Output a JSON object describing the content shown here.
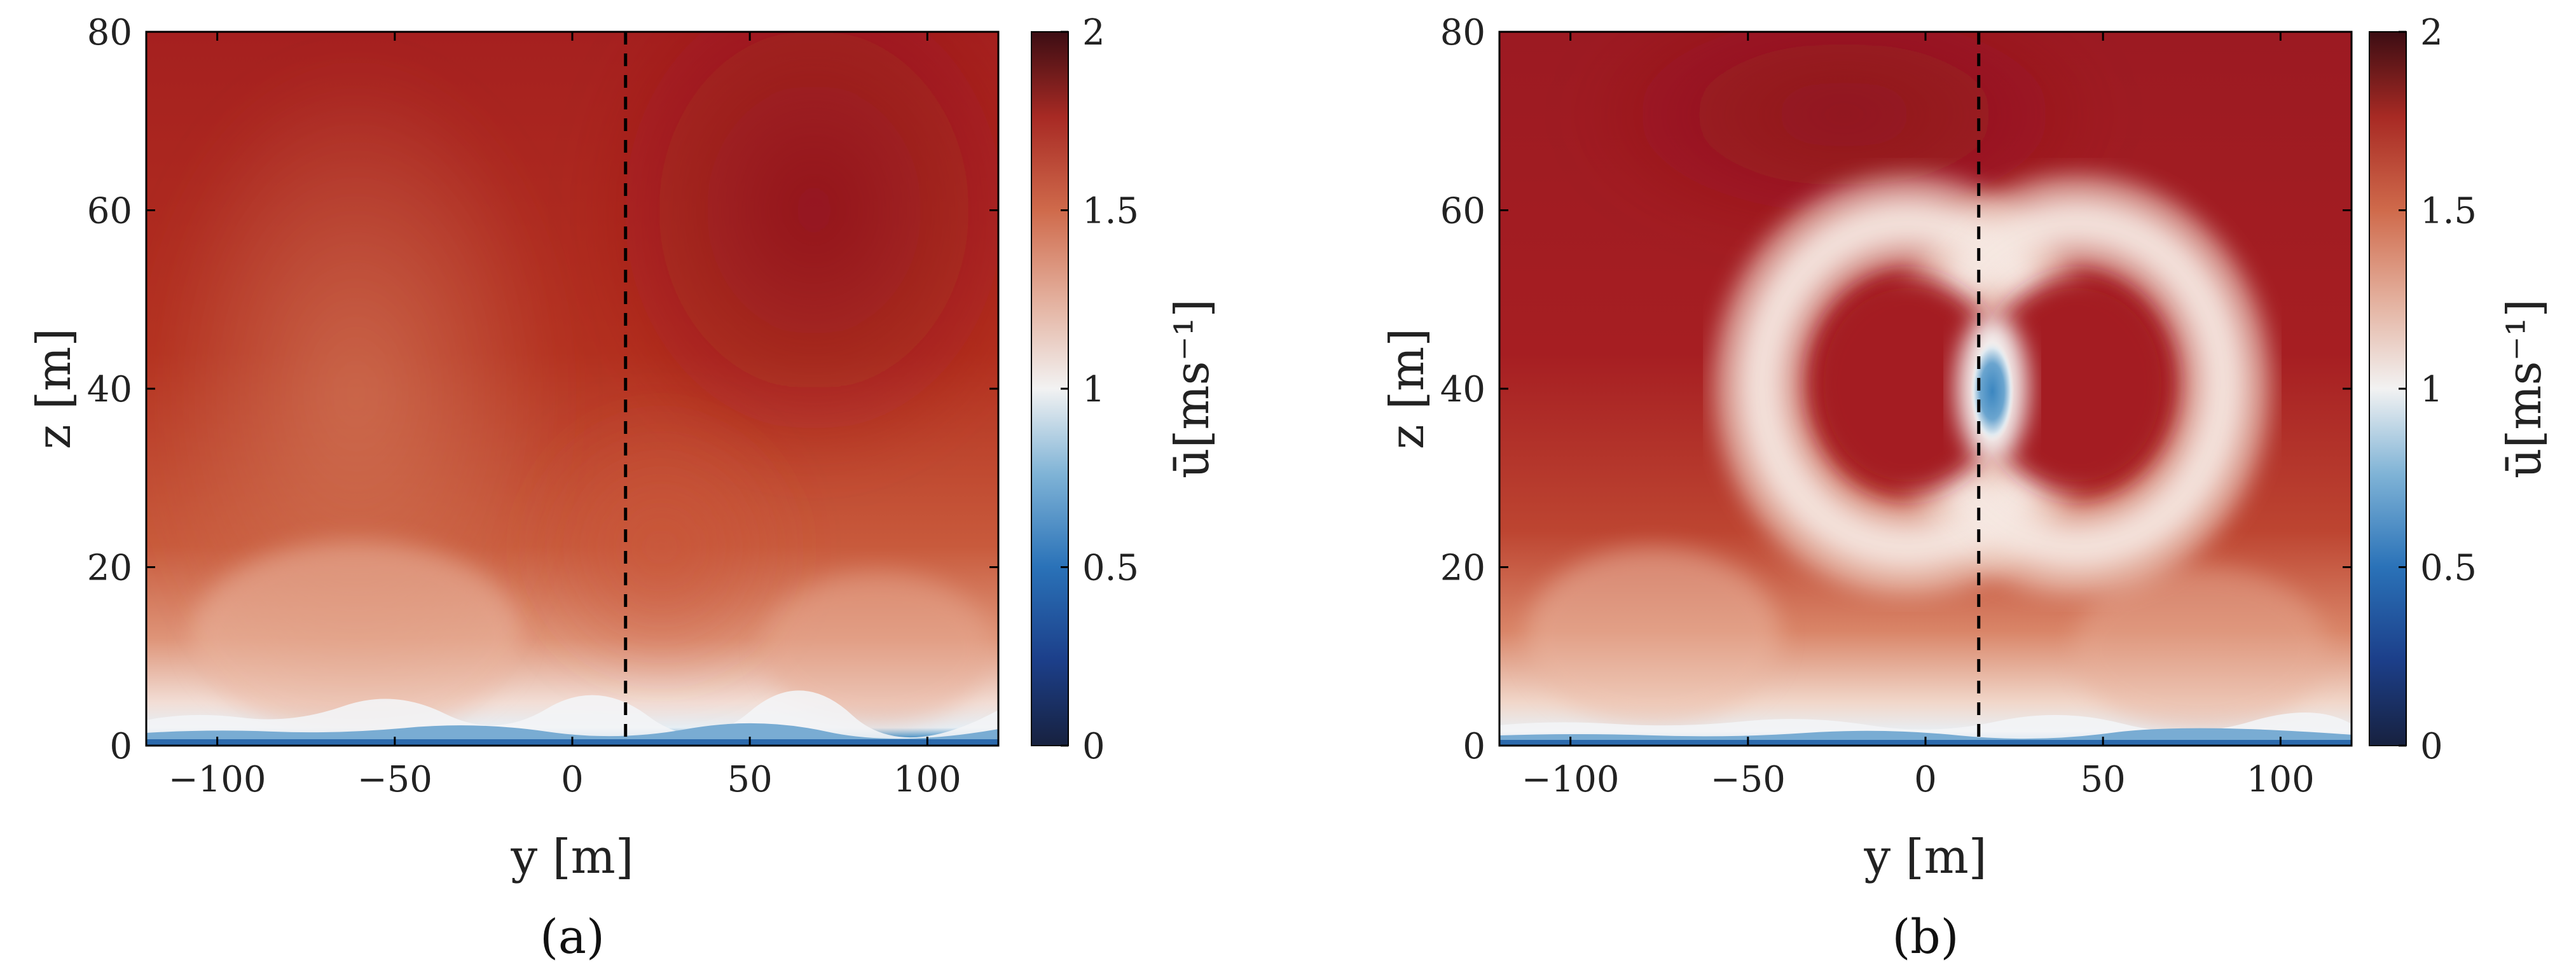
{
  "figure": {
    "panel_labels": [
      "(a)",
      "(b)"
    ]
  },
  "chart_data": [
    {
      "type": "heatmap",
      "panel": "(a)",
      "xlabel": "y [m]",
      "ylabel": "z [m]",
      "xlim": [
        -120,
        120
      ],
      "ylim": [
        0,
        80
      ],
      "xticks": [
        -100,
        -50,
        0,
        50,
        100
      ],
      "yticks": [
        0,
        20,
        40,
        60,
        80
      ],
      "colorbar": {
        "label": "ū[ms⁻¹]",
        "range": [
          0,
          2
        ],
        "ticks": [
          0,
          0.5,
          1,
          1.5,
          2
        ]
      },
      "reference_line": {
        "axis": "y",
        "value": 15,
        "style": "dashed",
        "color": "#000000"
      },
      "field_features": [
        {
          "description": "ground boundary layer",
          "z_range": [
            0,
            3
          ],
          "u_approx": 0.6
        },
        {
          "description": "near-surface low-speed region",
          "z_range": [
            3,
            20
          ],
          "u_approx": 1.25
        },
        {
          "description": "upper free stream (left side)",
          "y_center": -60,
          "z_approx": 55,
          "u_approx": 1.55
        },
        {
          "description": "upper free stream (right side)",
          "y_center": 75,
          "z_approx": 60,
          "u_approx": 1.9
        },
        {
          "description": "low-speed intrusion centred near",
          "y_center": 50,
          "z_approx": 20,
          "u_approx": 1.4
        }
      ]
    },
    {
      "type": "heatmap",
      "panel": "(b)",
      "xlabel": "y [m]",
      "ylabel": "z [m]",
      "xlim": [
        -120,
        120
      ],
      "ylim": [
        0,
        80
      ],
      "xticks": [
        -100,
        -50,
        0,
        50,
        100
      ],
      "yticks": [
        0,
        20,
        40,
        60,
        80
      ],
      "colorbar": {
        "label": "ū[ms⁻¹]",
        "range": [
          0,
          2
        ],
        "ticks": [
          0,
          0.5,
          1,
          1.5,
          2
        ]
      },
      "reference_line": {
        "axis": "y",
        "value": 15,
        "style": "dashed",
        "color": "#000000"
      },
      "field_features": [
        {
          "description": "figure-eight wake ring",
          "y_range": [
            -35,
            35
          ],
          "z_range": [
            27,
            60
          ],
          "u_approx": 1.05
        },
        {
          "description": "left lobe core",
          "y_center": -18,
          "z_approx": 44,
          "u_approx": 1.8
        },
        {
          "description": "right lobe core",
          "y_center": 18,
          "z_approx": 44,
          "u_approx": 1.8
        },
        {
          "description": "central low-speed core",
          "y_center": 0,
          "z_approx": 43,
          "u_approx": 0.7
        },
        {
          "description": "ground boundary layer",
          "z_range": [
            0,
            2
          ],
          "u_approx": 0.6
        },
        {
          "description": "free stream",
          "z_approx": 70,
          "u_approx": 1.9
        }
      ]
    }
  ]
}
